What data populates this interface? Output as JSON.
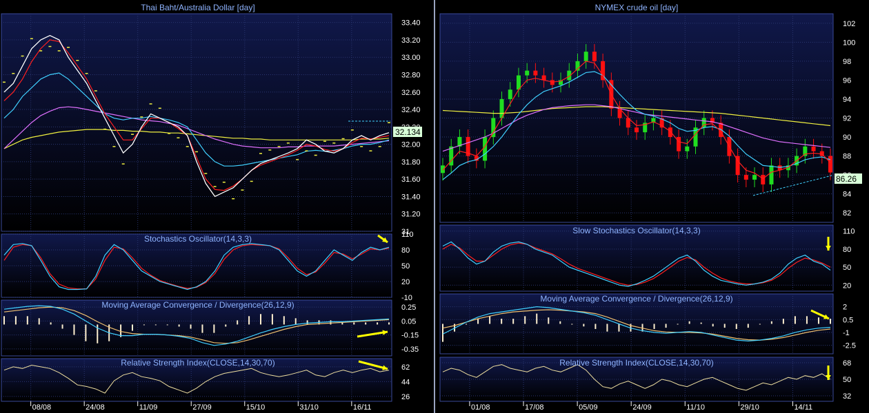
{
  "colors": {
    "panel_bg_top": "#10184a",
    "panel_bg_bottom": "#000000",
    "grid": "#2a3670",
    "title": "#8fb4ff",
    "axis_text": "#ffffff",
    "separator": "#9aa4c0",
    "price_line": "#ffffff",
    "ma_fast": "#ff2020",
    "ma_mid": "#40d0ff",
    "ma_slow": "#e070ff",
    "ma_long": "#f0f040",
    "candle_up": "#20dd20",
    "candle_down": "#ff1010",
    "stoch_k": "#40d0ff",
    "stoch_d": "#ff2020",
    "macd_line": "#40d0ff",
    "macd_signal": "#f0c070",
    "macd_hist": "#fff0d0",
    "rsi": "#f0e0a0",
    "arrow": "#ffff00",
    "last_price_bg": "#d8ffd8"
  },
  "chart_data": [
    {
      "id": "thb_aud",
      "type": "line",
      "title": "Thai Baht/Australia Dollar [day]",
      "x_labels": [
        "08/08",
        "24/08",
        "11/09",
        "27/09",
        "15/10",
        "31/10",
        "16/11"
      ],
      "y_ticks": [
        "33.40",
        "33.20",
        "33.00",
        "32.80",
        "32.60",
        "32.40",
        "32.20",
        "32.00",
        "31.80",
        "31.60",
        "31.40",
        "31.20",
        "31"
      ],
      "ylim": [
        31.0,
        33.5
      ],
      "last_value": "32.134",
      "price": [
        32.6,
        32.7,
        32.9,
        33.1,
        33.2,
        33.25,
        33.2,
        33.0,
        32.85,
        32.7,
        32.5,
        32.3,
        32.1,
        31.9,
        32.0,
        32.2,
        32.35,
        32.3,
        32.25,
        32.2,
        32.1,
        31.8,
        31.55,
        31.4,
        31.45,
        31.5,
        31.6,
        31.7,
        31.78,
        31.82,
        31.86,
        31.9,
        31.95,
        32.05,
        32.0,
        31.92,
        31.9,
        31.95,
        32.05,
        32.1,
        32.05,
        32.1,
        32.134
      ],
      "ma_fast": [
        32.5,
        32.6,
        32.75,
        32.95,
        33.1,
        33.2,
        33.18,
        33.05,
        32.9,
        32.75,
        32.55,
        32.35,
        32.2,
        32.05,
        32.05,
        32.18,
        32.3,
        32.3,
        32.25,
        32.18,
        32.1,
        31.85,
        31.6,
        31.48,
        31.47,
        31.52,
        31.6,
        31.7,
        31.76,
        31.8,
        31.84,
        31.88,
        31.93,
        32.0,
        31.98,
        31.94,
        31.92,
        31.95,
        32.02,
        32.07,
        32.06,
        32.08,
        32.1
      ],
      "ma_mid": [
        32.3,
        32.4,
        32.55,
        32.65,
        32.75,
        32.8,
        32.82,
        32.75,
        32.65,
        32.55,
        32.45,
        32.35,
        32.3,
        32.28,
        32.3,
        32.3,
        32.32,
        32.3,
        32.28,
        32.25,
        32.2,
        32.05,
        31.9,
        31.8,
        31.75,
        31.75,
        31.76,
        31.78,
        31.8,
        31.82,
        31.84,
        31.86,
        31.88,
        31.92,
        31.93,
        31.92,
        31.93,
        31.95,
        31.98,
        32.0,
        32.0,
        32.02,
        32.05
      ],
      "ma_slow": [
        31.95,
        32.05,
        32.15,
        32.25,
        32.33,
        32.38,
        32.42,
        32.43,
        32.42,
        32.4,
        32.38,
        32.36,
        32.34,
        32.32,
        32.3,
        32.28,
        32.27,
        32.26,
        32.24,
        32.22,
        32.18,
        32.14,
        32.1,
        32.06,
        32.03,
        32.0,
        31.98,
        31.97,
        31.96,
        31.96,
        31.96,
        31.97,
        31.97,
        31.98,
        31.98,
        31.98,
        31.98,
        31.99,
        32.0,
        32.01,
        32.02,
        32.03,
        32.04
      ],
      "ma_long": [
        31.95,
        32.0,
        32.05,
        32.08,
        32.1,
        32.12,
        32.14,
        32.15,
        32.16,
        32.17,
        32.17,
        32.17,
        32.16,
        32.16,
        32.15,
        32.15,
        32.14,
        32.14,
        32.13,
        32.13,
        32.12,
        32.11,
        32.1,
        32.09,
        32.08,
        32.07,
        32.07,
        32.06,
        32.06,
        32.05,
        32.05,
        32.05,
        32.05,
        32.05,
        32.05,
        32.05,
        32.05,
        32.05,
        32.05,
        32.06,
        32.06,
        32.06,
        32.07
      ],
      "stochastic": {
        "title": "Stochastics Oscillator(14,3,3)",
        "y_ticks": [
          "110",
          "80",
          "50",
          "20",
          "-10"
        ],
        "ylim": [
          -10,
          110
        ],
        "k": [
          70,
          90,
          92,
          88,
          60,
          30,
          10,
          5,
          5,
          6,
          30,
          70,
          90,
          80,
          60,
          40,
          30,
          20,
          15,
          10,
          5,
          10,
          20,
          40,
          70,
          85,
          90,
          92,
          90,
          88,
          80,
          60,
          40,
          30,
          40,
          60,
          80,
          70,
          60,
          75,
          85,
          80,
          85
        ],
        "d": [
          60,
          85,
          90,
          88,
          65,
          35,
          15,
          8,
          6,
          6,
          25,
          60,
          85,
          82,
          65,
          45,
          32,
          22,
          16,
          11,
          7,
          9,
          18,
          35,
          62,
          80,
          88,
          90,
          89,
          88,
          82,
          65,
          45,
          33,
          38,
          55,
          75,
          72,
          63,
          72,
          82,
          80,
          83
        ]
      },
      "macd": {
        "title": "Moving Average Convergence / Divergence(26,12,9)",
        "y_ticks": [
          "0.25",
          "0.05",
          "-0.15",
          "-0.35"
        ],
        "ylim": [
          -0.45,
          0.35
        ],
        "line": [
          0.22,
          0.24,
          0.26,
          0.27,
          0.26,
          0.22,
          0.15,
          0.05,
          -0.05,
          -0.12,
          -0.16,
          -0.16,
          -0.14,
          -0.14,
          -0.15,
          -0.17,
          -0.2,
          -0.26,
          -0.3,
          -0.28,
          -0.24,
          -0.18,
          -0.12,
          -0.07,
          -0.03,
          0.0,
          0.02,
          0.03,
          0.04,
          0.04,
          0.05,
          0.06,
          0.07,
          0.08
        ],
        "signal": [
          0.18,
          0.2,
          0.22,
          0.24,
          0.25,
          0.24,
          0.2,
          0.13,
          0.04,
          -0.04,
          -0.1,
          -0.13,
          -0.14,
          -0.14,
          -0.15,
          -0.16,
          -0.18,
          -0.22,
          -0.26,
          -0.27,
          -0.26,
          -0.22,
          -0.17,
          -0.12,
          -0.07,
          -0.03,
          0.0,
          0.01,
          0.02,
          0.03,
          0.04,
          0.05,
          0.06,
          0.07
        ]
      },
      "rsi": {
        "title": "Relative Strength Index(CLOSE,14,30,70)",
        "y_ticks": [
          "62",
          "44",
          "26"
        ],
        "ylim": [
          20,
          72
        ],
        "values": [
          58,
          62,
          60,
          64,
          62,
          60,
          55,
          48,
          40,
          38,
          35,
          30,
          45,
          52,
          55,
          50,
          48,
          45,
          38,
          34,
          30,
          36,
          44,
          50,
          54,
          56,
          58,
          60,
          55,
          52,
          50,
          52,
          55,
          58,
          52,
          50,
          55,
          58,
          55,
          58,
          60,
          56,
          58
        ]
      }
    },
    {
      "id": "nymex_crude",
      "type": "candlestick",
      "title": "NYMEX crude oil [day]",
      "x_labels": [
        "01/08",
        "17/08",
        "05/09",
        "24/09",
        "11/10",
        "29/10",
        "14/11"
      ],
      "y_ticks": [
        "102",
        "100",
        "98",
        "96",
        "94",
        "92",
        "90",
        "88",
        "86",
        "84",
        "82"
      ],
      "ylim": [
        81,
        103
      ],
      "last_value": "86.26",
      "close": [
        87,
        89,
        90,
        88,
        87.5,
        90,
        92,
        94,
        95,
        96.5,
        97,
        96.5,
        96,
        95.5,
        96,
        97,
        98,
        99,
        98,
        96,
        93,
        92,
        91,
        90.5,
        91.5,
        92,
        91,
        90,
        88.5,
        89,
        91,
        92,
        91.5,
        90,
        88,
        86,
        85.5,
        86,
        85,
        87,
        86.5,
        87,
        88,
        89,
        88.5,
        88,
        86.26
      ],
      "ma_fast": [
        86.5,
        87.5,
        88.5,
        88.3,
        88.0,
        89.0,
        90.5,
        92.0,
        93.5,
        95.0,
        96.0,
        96.2,
        96.0,
        95.8,
        95.9,
        96.4,
        97.2,
        98.0,
        97.8,
        96.5,
        94.5,
        93.0,
        92.0,
        91.2,
        91.3,
        91.6,
        91.2,
        90.6,
        89.5,
        89.3,
        90.3,
        91.3,
        91.4,
        90.6,
        89.0,
        87.5,
        86.5,
        86.2,
        85.6,
        86.3,
        86.5,
        86.8,
        87.5,
        88.2,
        88.3,
        88.2,
        87.3
      ],
      "ma_mid": [
        85.5,
        86.2,
        87.0,
        87.4,
        87.6,
        88.2,
        89.0,
        90.0,
        91.2,
        92.4,
        93.4,
        94.2,
        94.8,
        95.1,
        95.4,
        95.8,
        96.3,
        96.8,
        96.9,
        96.5,
        95.5,
        94.5,
        93.6,
        92.8,
        92.4,
        92.2,
        91.9,
        91.5,
        90.9,
        90.6,
        90.7,
        91.0,
        91.1,
        90.8,
        90.1,
        89.1,
        88.2,
        87.6,
        87.0,
        86.9,
        86.8,
        86.9,
        87.2,
        87.6,
        87.8,
        87.9,
        87.6
      ],
      "ma_slow": [
        88.5,
        88.8,
        89.1,
        89.4,
        89.7,
        90.0,
        90.4,
        90.9,
        91.4,
        91.9,
        92.3,
        92.6,
        92.9,
        93.1,
        93.2,
        93.3,
        93.35,
        93.4,
        93.4,
        93.3,
        93.2,
        93.0,
        92.8,
        92.6,
        92.4,
        92.3,
        92.2,
        92.1,
        92.0,
        91.9,
        91.8,
        91.7,
        91.6,
        91.4,
        91.1,
        90.8,
        90.5,
        90.2,
        89.9,
        89.7,
        89.5,
        89.4,
        89.3,
        89.2,
        89.1,
        89.0,
        88.9
      ],
      "ma_long": [
        92.8,
        92.75,
        92.7,
        92.65,
        92.6,
        92.55,
        92.5,
        92.5,
        92.55,
        92.6,
        92.7,
        92.8,
        92.9,
        93.0,
        93.05,
        93.1,
        93.15,
        93.2,
        93.2,
        93.2,
        93.15,
        93.1,
        93.05,
        93.0,
        92.95,
        92.9,
        92.85,
        92.8,
        92.75,
        92.7,
        92.65,
        92.6,
        92.55,
        92.5,
        92.4,
        92.3,
        92.2,
        92.1,
        92.0,
        91.9,
        91.8,
        91.7,
        91.6,
        91.5,
        91.4,
        91.3,
        91.2
      ],
      "stochastic": {
        "title": "Slow Stochastics Oscillator(14,3,3)",
        "y_ticks": [
          "110",
          "80",
          "50",
          "20"
        ],
        "ylim": [
          10,
          120
        ],
        "k": [
          85,
          92,
          80,
          65,
          55,
          60,
          75,
          85,
          90,
          92,
          88,
          80,
          75,
          70,
          60,
          50,
          45,
          40,
          35,
          30,
          25,
          20,
          18,
          22,
          28,
          35,
          45,
          55,
          65,
          70,
          60,
          45,
          35,
          28,
          25,
          22,
          20,
          22,
          25,
          30,
          40,
          55,
          65,
          70,
          60,
          55,
          45
        ],
        "d": [
          80,
          88,
          82,
          70,
          60,
          60,
          70,
          80,
          87,
          90,
          88,
          82,
          77,
          72,
          64,
          55,
          48,
          43,
          38,
          33,
          28,
          23,
          20,
          21,
          25,
          31,
          40,
          50,
          60,
          66,
          62,
          50,
          40,
          32,
          27,
          24,
          22,
          22,
          24,
          28,
          36,
          48,
          58,
          65,
          62,
          57,
          50
        ]
      },
      "macd": {
        "title": "Moving Average Convergence / Divergence(26,12,9)",
        "y_ticks": [
          "2",
          "0.5",
          "-1",
          "-2.5"
        ],
        "ylim": [
          -3.5,
          3.5
        ],
        "line": [
          -1.2,
          -0.5,
          0.2,
          0.8,
          1.2,
          1.4,
          1.6,
          1.8,
          2.0,
          1.9,
          1.7,
          1.5,
          1.3,
          1.0,
          0.5,
          0.0,
          -0.5,
          -0.8,
          -1.0,
          -1.1,
          -1.0,
          -0.9,
          -1.0,
          -1.3,
          -1.6,
          -1.9,
          -2.0,
          -1.9,
          -1.7,
          -1.4,
          -1.0,
          -0.7,
          -0.5,
          -0.4
        ],
        "signal": [
          -0.5,
          -0.2,
          0.2,
          0.6,
          0.9,
          1.2,
          1.4,
          1.5,
          1.6,
          1.65,
          1.6,
          1.5,
          1.4,
          1.2,
          0.8,
          0.3,
          -0.2,
          -0.5,
          -0.8,
          -0.95,
          -1.0,
          -1.0,
          -1.05,
          -1.2,
          -1.45,
          -1.7,
          -1.85,
          -1.9,
          -1.8,
          -1.6,
          -1.3,
          -1.0,
          -0.75,
          -0.6
        ]
      },
      "rsi": {
        "title": "Relative Strength Index(CLOSE,14,30,70)",
        "y_ticks": [
          "68",
          "50",
          "32"
        ],
        "ylim": [
          26,
          74
        ],
        "values": [
          58,
          62,
          60,
          55,
          52,
          58,
          64,
          66,
          62,
          60,
          58,
          62,
          64,
          60,
          58,
          62,
          66,
          60,
          50,
          42,
          40,
          45,
          48,
          44,
          40,
          44,
          50,
          48,
          44,
          42,
          46,
          50,
          52,
          48,
          44,
          40,
          38,
          42,
          46,
          44,
          48,
          52,
          50,
          54,
          52,
          56,
          50
        ]
      }
    }
  ]
}
